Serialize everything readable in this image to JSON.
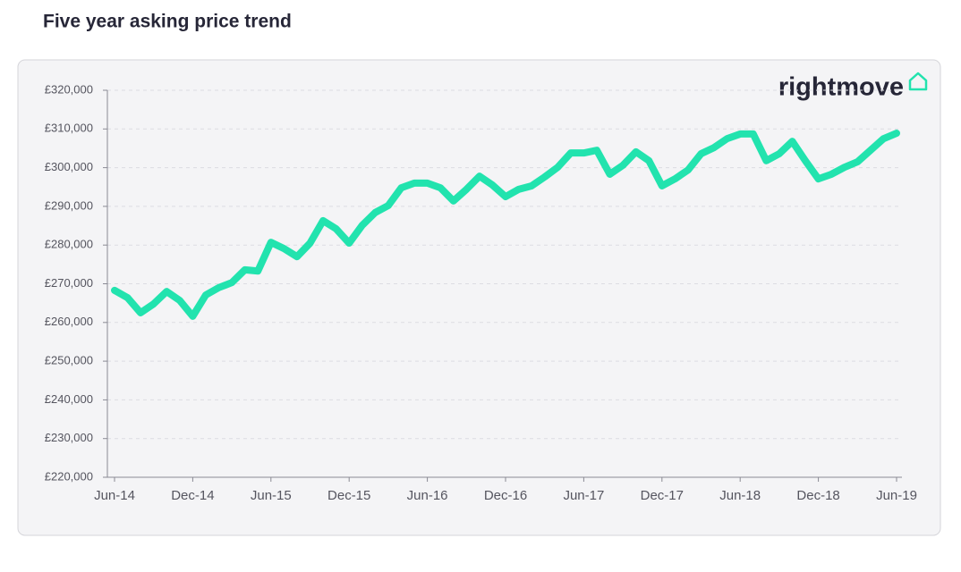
{
  "chart_data": {
    "type": "line",
    "title": "Five year asking price trend",
    "logo": "rightmove",
    "categories": [
      "Jun-14",
      null,
      null,
      null,
      null,
      null,
      "Dec-14",
      null,
      null,
      null,
      null,
      null,
      "Jun-15",
      null,
      null,
      null,
      null,
      null,
      "Dec-15",
      null,
      null,
      null,
      null,
      null,
      "Jun-16",
      null,
      null,
      null,
      null,
      null,
      "Dec-16",
      null,
      null,
      null,
      null,
      null,
      "Jun-17",
      null,
      null,
      null,
      null,
      null,
      "Dec-17",
      null,
      null,
      null,
      null,
      null,
      "Jun-18",
      null,
      null,
      null,
      null,
      null,
      "Dec-18",
      null,
      null,
      null,
      null,
      null,
      "Jun-19"
    ],
    "series": [
      {
        "name": "Asking price",
        "color": "#22e3ae",
        "values": [
          268300,
          266400,
          262500,
          264800,
          268000,
          265700,
          261600,
          267100,
          269000,
          270300,
          273600,
          273300,
          280700,
          279100,
          277000,
          280500,
          286300,
          284200,
          280500,
          285100,
          288400,
          290200,
          294800,
          296000,
          296000,
          294800,
          291400,
          294400,
          297800,
          295500,
          292500,
          294400,
          295300,
          297600,
          300100,
          303800,
          303800,
          304500,
          298300,
          300600,
          304100,
          301800,
          295300,
          297100,
          299400,
          303600,
          305200,
          307500,
          308700,
          308700,
          301800,
          303600,
          306800,
          301800,
          297100,
          298300,
          300100,
          301500,
          304500,
          307500,
          308900
        ]
      }
    ],
    "ylim": [
      220000,
      320000
    ],
    "yticks": [
      {
        "value": 220000,
        "label": "£220,000"
      },
      {
        "value": 230000,
        "label": "£230,000"
      },
      {
        "value": 240000,
        "label": "£240,000"
      },
      {
        "value": 250000,
        "label": "£250,000"
      },
      {
        "value": 260000,
        "label": "£260,000"
      },
      {
        "value": 270000,
        "label": "£270,000"
      },
      {
        "value": 280000,
        "label": "£280,000"
      },
      {
        "value": 290000,
        "label": "£290,000"
      },
      {
        "value": 300000,
        "label": "£300,000"
      },
      {
        "value": 310000,
        "label": "£310,000"
      },
      {
        "value": 320000,
        "label": "£320,000"
      }
    ],
    "grid": true
  }
}
